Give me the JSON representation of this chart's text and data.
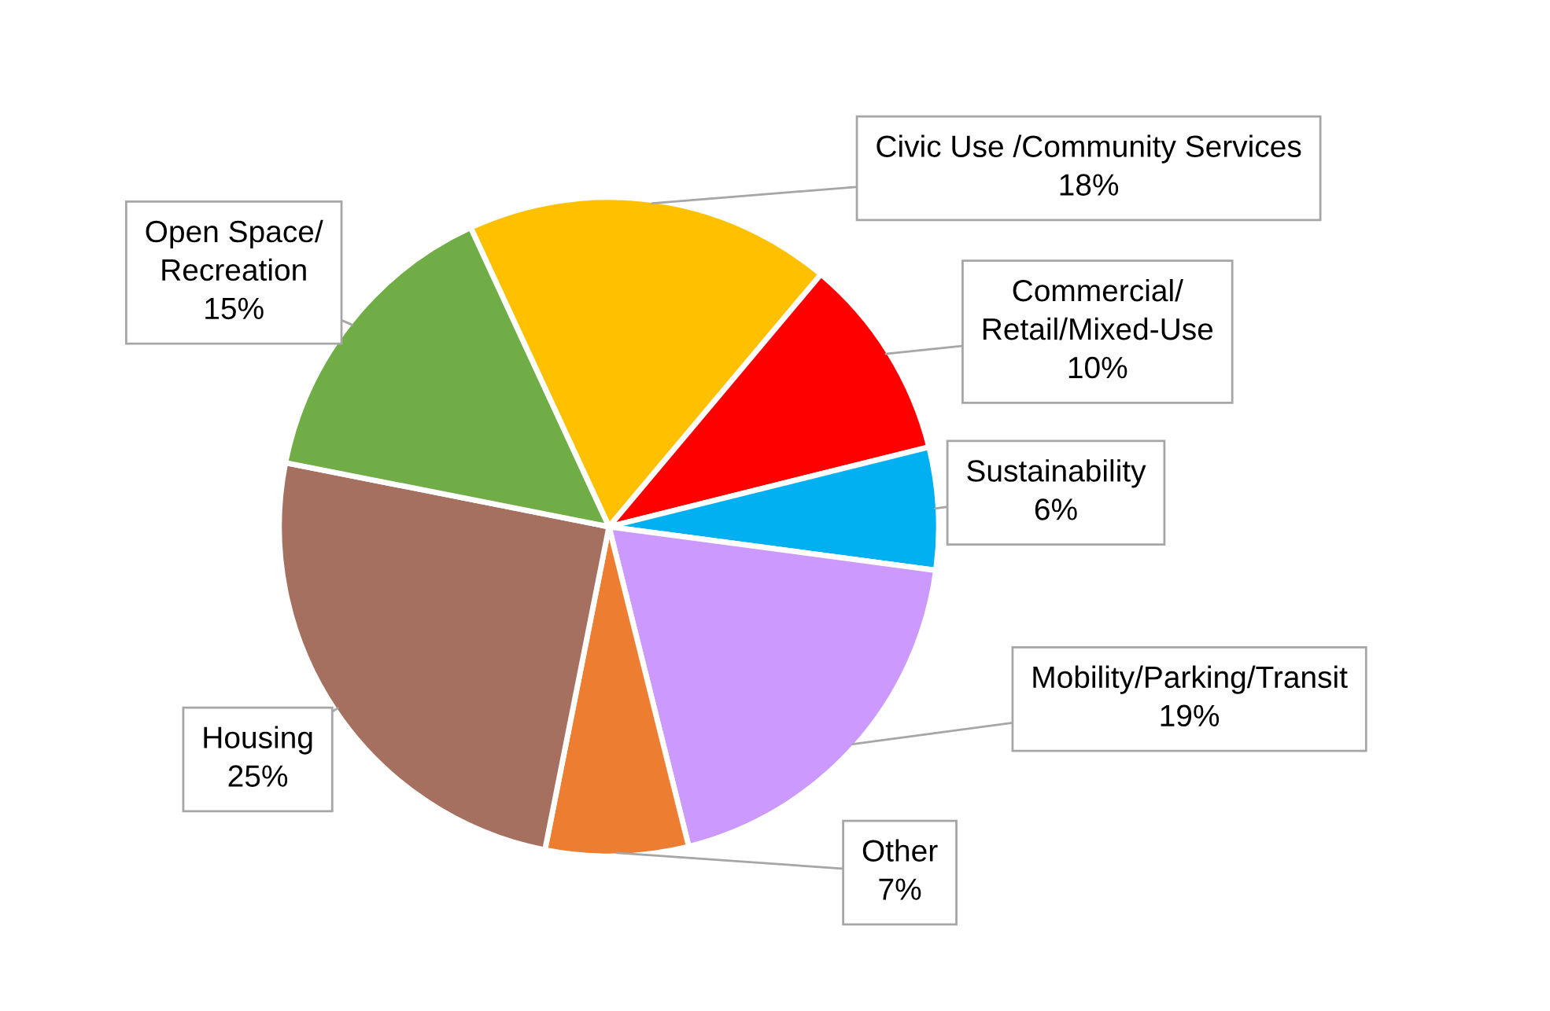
{
  "chart_data": {
    "type": "pie",
    "categories": [
      "Civic Use /Community Services",
      "Commercial/\nRetail/Mixed-Use",
      "Sustainability",
      "Mobility/Parking/Transit",
      "Other",
      "Housing",
      "Open Space/\nRecreation"
    ],
    "values": [
      18,
      10,
      6,
      19,
      7,
      25,
      15
    ],
    "colors": [
      "#ffc000",
      "#ff0000",
      "#00b0f0",
      "#cc99ff",
      "#ed7d31",
      "#a5705f",
      "#70ad47"
    ],
    "value_labels": [
      "18%",
      "10%",
      "6%",
      "19%",
      "7%",
      "25%",
      "15%"
    ],
    "legend": false
  }
}
